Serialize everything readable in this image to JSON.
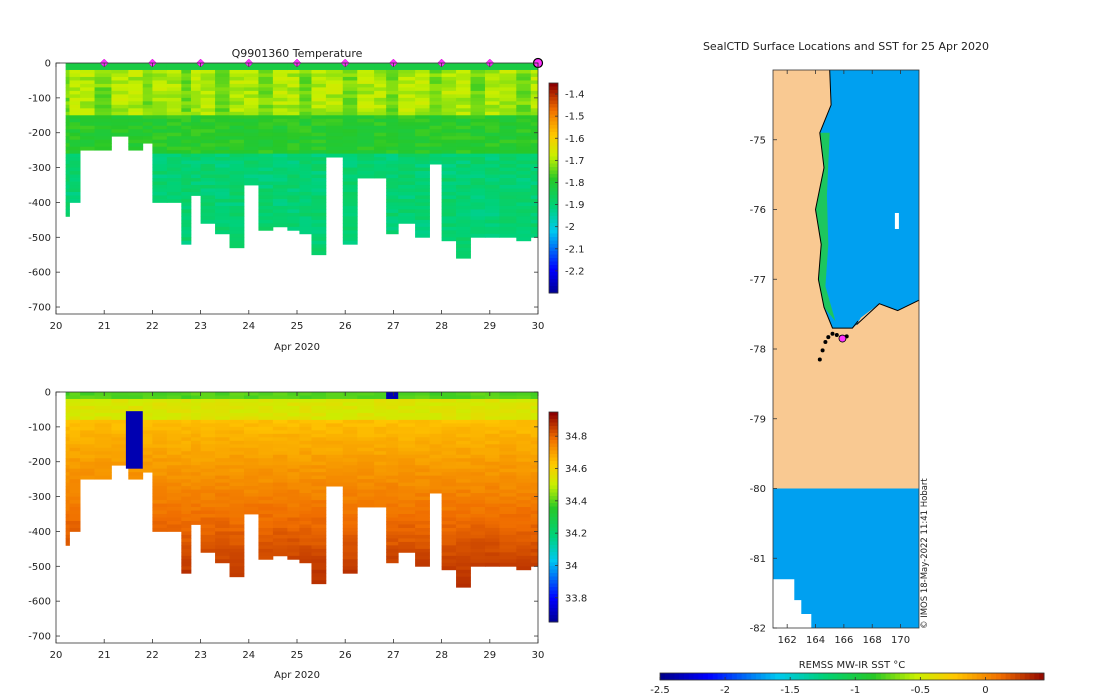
{
  "chart_data": [
    {
      "type": "heatmap",
      "title": "Q9901360  Temperature",
      "xlabel": "Apr 2020",
      "x_ticks": [
        20,
        21,
        22,
        23,
        24,
        25,
        26,
        27,
        28,
        29,
        30
      ],
      "x_tick_labels": [
        "20",
        "21",
        "22",
        "23",
        "24",
        "25",
        "26",
        "27",
        "28",
        "29",
        "30"
      ],
      "y_ticks": [
        0,
        -100,
        -200,
        -300,
        -400,
        -500,
        -600,
        -700
      ],
      "y_tick_labels": [
        "0",
        "-100",
        "-200",
        "-300",
        "-400",
        "-500",
        "-600",
        "-700"
      ],
      "xlim": [
        20,
        30
      ],
      "ylim": [
        -720,
        0
      ],
      "colorbar_ticks": [
        -1.4,
        -1.5,
        -1.6,
        -1.7,
        -1.8,
        -1.9,
        -2,
        -2.1,
        -2.2
      ],
      "colorbar_tick_labels": [
        "-1.4",
        "-1.5",
        "-1.6",
        "-1.7",
        "-1.8",
        "-1.9",
        "-2",
        "-2.1",
        "-2.2"
      ],
      "colorbar_range": [
        -2.3,
        -1.35
      ],
      "profile_days": [
        20.2,
        20.28,
        20.5,
        20.8,
        21.15,
        21.5,
        21.8,
        22.0,
        22.3,
        22.6,
        22.8,
        23.0,
        23.3,
        23.6,
        23.9,
        24.2,
        24.5,
        24.8,
        25.05,
        25.3,
        25.6,
        25.95,
        26.25,
        26.6,
        26.85,
        27.1,
        27.45,
        27.75,
        28.0,
        28.3,
        28.6,
        28.9,
        29.2,
        29.55,
        29.85
      ],
      "profile_max_depth": [
        440,
        400,
        250,
        250,
        205,
        250,
        225,
        400,
        400,
        515,
        380,
        455,
        485,
        530,
        345,
        480,
        470,
        475,
        485,
        550,
        270,
        520,
        325,
        325,
        490,
        460,
        495,
        290,
        510,
        555,
        500,
        500,
        500,
        510,
        500
      ],
      "surface_markers_x": [
        21,
        22,
        23,
        24,
        25,
        26,
        27,
        28,
        29
      ],
      "last_marker_x": 30
    },
    {
      "type": "heatmap",
      "title": "",
      "xlabel": "Apr 2020",
      "x_ticks": [
        20,
        21,
        22,
        23,
        24,
        25,
        26,
        27,
        28,
        29,
        30
      ],
      "x_tick_labels": [
        "20",
        "21",
        "22",
        "23",
        "24",
        "25",
        "26",
        "27",
        "28",
        "29",
        "30"
      ],
      "y_ticks": [
        0,
        -100,
        -200,
        -300,
        -400,
        -500,
        -600,
        -700
      ],
      "y_tick_labels": [
        "0",
        "-100",
        "-200",
        "-300",
        "-400",
        "-500",
        "-600",
        "-700"
      ],
      "xlim": [
        20,
        30
      ],
      "ylim": [
        -720,
        0
      ],
      "colorbar_ticks": [
        34.8,
        34.6,
        34.4,
        34.2,
        34,
        33.8
      ],
      "colorbar_tick_labels": [
        "34.8",
        "34.6",
        "34.4",
        "34.2",
        "34",
        "33.8"
      ],
      "colorbar_range": [
        33.65,
        34.95
      ],
      "anomaly_patch": {
        "x0": 21.45,
        "x1": 21.8,
        "depth_top": 55,
        "depth_bottom": 220,
        "value": 33.7
      }
    },
    {
      "type": "heatmap",
      "title": "SealCTD Surface Locations and SST for 25 Apr 2020",
      "xlabel": "REMSS MW-IR SST °C",
      "x_ticks": [
        162,
        164,
        166,
        168,
        170
      ],
      "x_tick_labels": [
        "162",
        "164",
        "166",
        "168",
        "170"
      ],
      "y_ticks": [
        -75,
        -76,
        -77,
        -78,
        -79,
        -80,
        -81,
        -82
      ],
      "y_tick_labels": [
        "-75",
        "-76",
        "-77",
        "-78",
        "-79",
        "-80",
        "-81",
        "-82"
      ],
      "xlim": [
        161,
        171.3
      ],
      "ylim": [
        -82,
        -74.0
      ],
      "colorbar_ticks": [
        -2.5,
        -2,
        -1.5,
        -1,
        -0.5,
        0
      ],
      "colorbar_tick_labels": [
        "-2.5",
        "-2",
        "-1.5",
        "-1",
        "-0.5",
        "0"
      ],
      "colorbar_range": [
        -2.5,
        0.45
      ],
      "sst_value": -1.9,
      "land_color": "#f9c992",
      "sea_color": "#00a0f0",
      "track_points_lon": [
        164.3,
        164.5,
        164.7,
        164.9,
        165.2,
        165.5,
        165.8,
        166.0,
        166.2
      ],
      "track_points_lat": [
        -78.15,
        -78.02,
        -77.9,
        -77.83,
        -77.78,
        -77.8,
        -77.83,
        -77.85,
        -77.82
      ],
      "watermark": "© IMOS 18-May-2022 11:41 Hobart"
    }
  ]
}
